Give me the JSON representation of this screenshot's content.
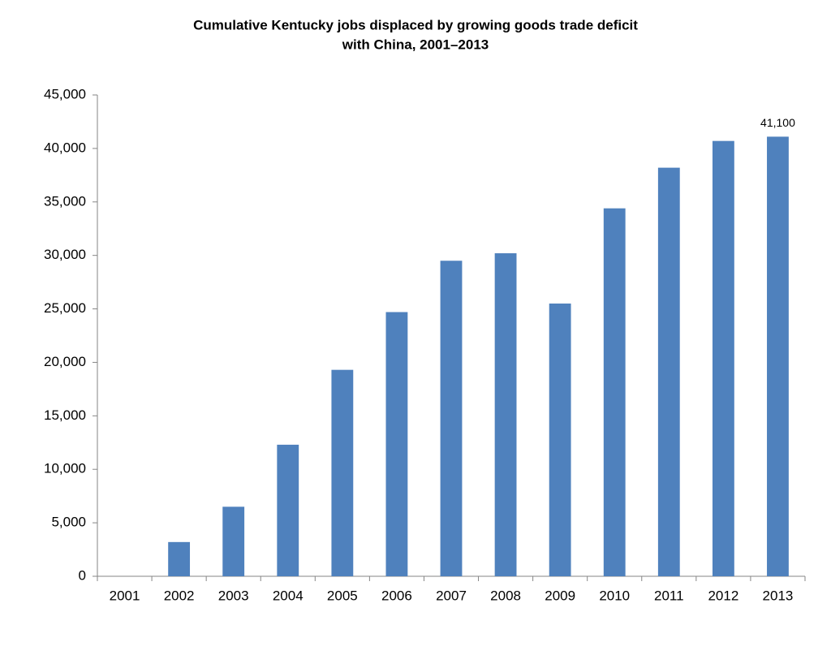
{
  "chart_data": {
    "type": "bar",
    "title": [
      "Cumulative Kentucky jobs displaced by growing goods trade deficit",
      "with China, 2001–2013"
    ],
    "categories": [
      "2001",
      "2002",
      "2003",
      "2004",
      "2005",
      "2006",
      "2007",
      "2008",
      "2009",
      "2010",
      "2011",
      "2012",
      "2013"
    ],
    "values": [
      0,
      3200,
      6500,
      12300,
      19300,
      24700,
      29500,
      30200,
      25500,
      34400,
      38200,
      40700,
      41100
    ],
    "value_labels": [
      null,
      null,
      null,
      null,
      null,
      null,
      null,
      null,
      null,
      null,
      null,
      null,
      "41,100"
    ],
    "color": "#4f81bd",
    "ylim": [
      0,
      45000
    ],
    "yticks": [
      0,
      {
        "value": 5000,
        "label": "5,000"
      },
      {
        "value": 10000,
        "label": "10,000"
      },
      {
        "value": 15000,
        "label": "15,000"
      },
      {
        "value": 20000,
        "label": "20,000"
      },
      {
        "value": 25000,
        "label": "25,000"
      },
      {
        "value": 30000,
        "label": "30,000"
      },
      {
        "value": 35000,
        "label": "35,000"
      },
      {
        "value": 40000,
        "label": "40,000"
      },
      {
        "value": 45000,
        "label": "45,000"
      }
    ],
    "grid": false
  }
}
